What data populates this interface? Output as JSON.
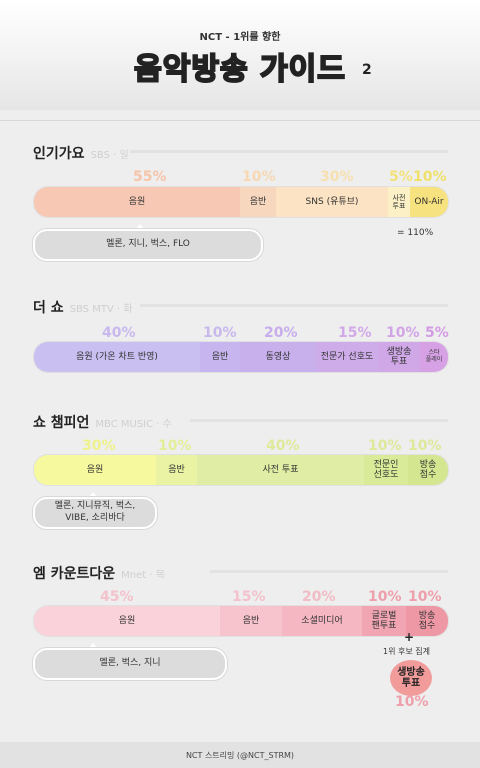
{
  "header": {
    "subtitle": "NCT - 1위를 향한",
    "title": "음악방송 가이드",
    "number": "2"
  },
  "inkigayo": {
    "name": "인기가요",
    "tag": "SBS · 일",
    "pcts": [
      "55%",
      "10%",
      "30%",
      "5%",
      "10%"
    ],
    "segs": [
      "음원",
      "음반",
      "SNS (유튜브)",
      "사전\n투표",
      "ON-Air"
    ],
    "pill": "멜론, 지니, 벅스, FLO",
    "total": "= 110%"
  },
  "theshow": {
    "name": "더 쇼",
    "tag": "SBS MTV · 화",
    "pcts": [
      "40%",
      "10%",
      "20%",
      "15%",
      "10%",
      "5%"
    ],
    "segs": [
      "음원 (가온 차트 반영)",
      "음반",
      "동영상",
      "전문가 선호도",
      "생방송\n투표",
      "스타\n플레이"
    ]
  },
  "showchampion": {
    "name": "쇼 챔피언",
    "tag": "MBC MUSIC · 수",
    "pcts": [
      "30%",
      "10%",
      "40%",
      "10%",
      "10%"
    ],
    "segs": [
      "음원",
      "음반",
      "사전 투표",
      "전문인\n선호도",
      "방송\n점수"
    ],
    "pill": "멜론, 지니뮤직, 벅스,\nVIBE, 소리바다"
  },
  "mcountdown": {
    "name": "엠 카운트다운",
    "tag": "Mnet · 목",
    "pcts": [
      "45%",
      "15%",
      "20%",
      "10%",
      "10%"
    ],
    "segs": [
      "음원",
      "음반",
      "소셜미디어",
      "글로벌\n팬투표",
      "방송\n점수"
    ],
    "pill": "멜론, 벅스, 지니",
    "plus": "+",
    "note": "1위 후보 집계",
    "circle": "생방송\n투표",
    "circle_pct": "10%"
  },
  "footer": "NCT 스트리밍 (@NCT_STRM)",
  "colors": {
    "ink": "#222222",
    "inkigayo_pct": "#f6c4a8",
    "theshow_pct": "#c8b8ee",
    "showchampion_pct": "#dfe99a",
    "mcountdown_pct": "#f3c2cc"
  }
}
